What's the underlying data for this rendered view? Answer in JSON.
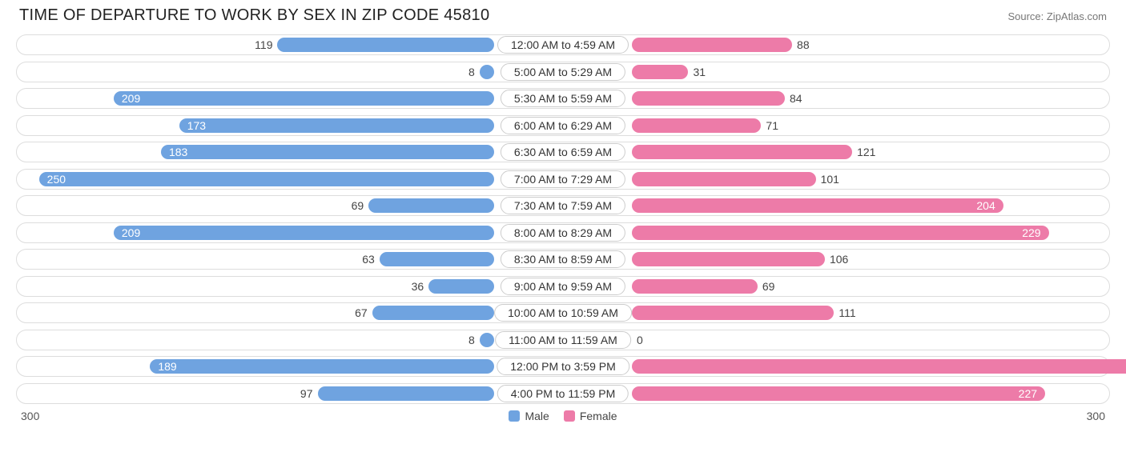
{
  "title": "TIME OF DEPARTURE TO WORK BY SEX IN ZIP CODE 45810",
  "source": "Source: ZipAtlas.com",
  "chart": {
    "type": "diverging-bar",
    "max": 300,
    "axis_left_label": "300",
    "axis_right_label": "300",
    "male_color": "#6fa3e0",
    "female_color": "#ed7ba8",
    "track_border": "#dddddd",
    "track_bg": "#ffffff",
    "value_label_color": "#444444",
    "value_label_color_inside": "#ffffff",
    "label_fontsize": 14,
    "title_fontsize": 20,
    "inside_threshold": 150,
    "rows": [
      {
        "category": "12:00 AM to 4:59 AM",
        "male": 119,
        "female": 88
      },
      {
        "category": "5:00 AM to 5:29 AM",
        "male": 8,
        "female": 31
      },
      {
        "category": "5:30 AM to 5:59 AM",
        "male": 209,
        "female": 84
      },
      {
        "category": "6:00 AM to 6:29 AM",
        "male": 173,
        "female": 71
      },
      {
        "category": "6:30 AM to 6:59 AM",
        "male": 183,
        "female": 121
      },
      {
        "category": "7:00 AM to 7:29 AM",
        "male": 250,
        "female": 101
      },
      {
        "category": "7:30 AM to 7:59 AM",
        "male": 69,
        "female": 204
      },
      {
        "category": "8:00 AM to 8:29 AM",
        "male": 209,
        "female": 229
      },
      {
        "category": "8:30 AM to 8:59 AM",
        "male": 63,
        "female": 106
      },
      {
        "category": "9:00 AM to 9:59 AM",
        "male": 36,
        "female": 69
      },
      {
        "category": "10:00 AM to 10:59 AM",
        "male": 67,
        "female": 111
      },
      {
        "category": "11:00 AM to 11:59 AM",
        "male": 8,
        "female": 0
      },
      {
        "category": "12:00 PM to 3:59 PM",
        "male": 189,
        "female": 295
      },
      {
        "category": "4:00 PM to 11:59 PM",
        "male": 97,
        "female": 227
      }
    ],
    "legend": {
      "male_label": "Male",
      "female_label": "Female"
    }
  }
}
